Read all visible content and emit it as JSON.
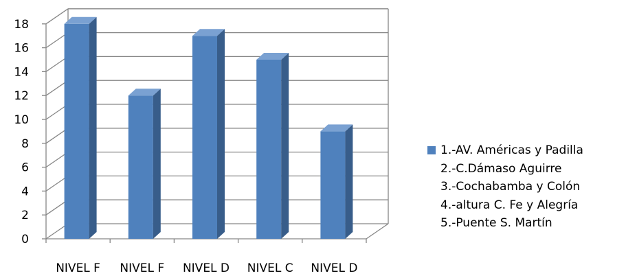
{
  "chart_data": {
    "type": "bar",
    "categories": [
      "NIVEL F",
      "NIVEL F",
      "NIVEL D",
      "NIVEL C",
      "NIVEL D"
    ],
    "series": [
      {
        "name": "1.-AV. Américas y Padilla",
        "values": [
          18,
          12,
          17,
          15,
          9
        ]
      }
    ],
    "legend_entries": [
      "1.-AV. Américas y Padilla",
      "2.-C.Dámaso  Aguirre",
      "3.-Cochabamba y Colón",
      "4.-altura C. Fe y Alegría",
      "5.-Puente S. Martín"
    ],
    "y_ticks": [
      "0",
      "2",
      "4",
      "6",
      "8",
      "10",
      "12",
      "14",
      "16",
      "18"
    ],
    "ylim": [
      0,
      18
    ],
    "grid": true,
    "legend_position": "right",
    "colors": {
      "bar_front": "#4f81bd",
      "bar_side": "#385d8a",
      "bar_top": "#7aa1d2",
      "grid": "#868686"
    }
  }
}
